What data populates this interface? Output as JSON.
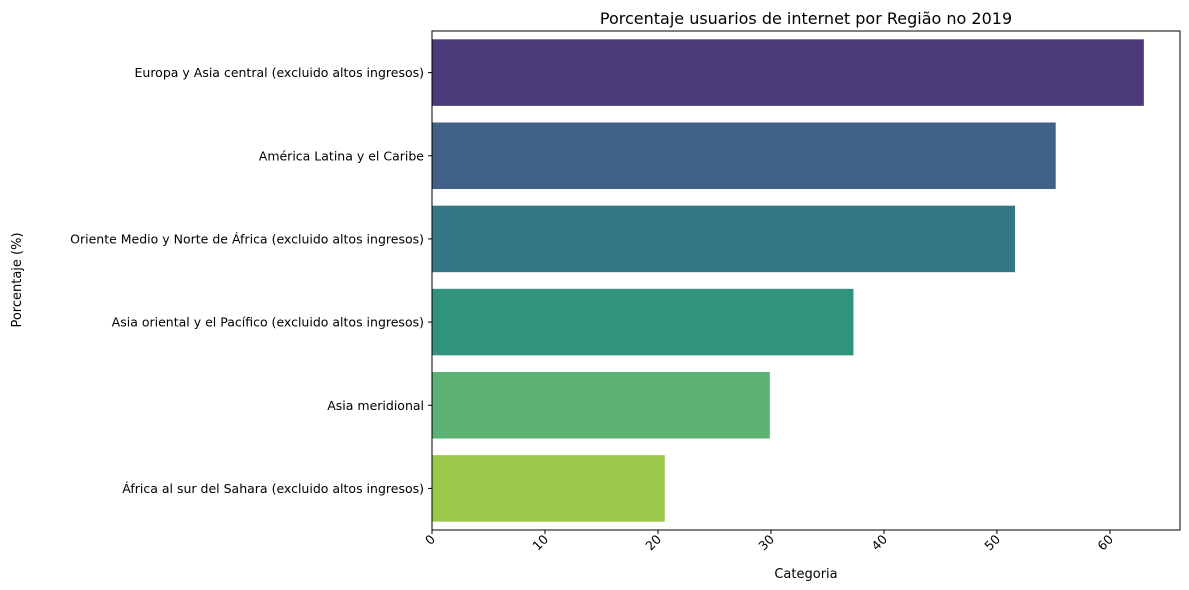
{
  "chart_data": {
    "type": "bar",
    "orientation": "horizontal",
    "title": "Porcentaje usuarios de internet por Região no 2019",
    "xlabel": "Categoria",
    "ylabel": "Porcentaje (%)",
    "xlim": [
      0,
      66.2
    ],
    "xticks": [
      "0",
      "10",
      "20",
      "30",
      "40",
      "50",
      "60"
    ],
    "categories": [
      "Europa y Asia central (excluido altos ingresos)",
      "América Latina y el Caribe",
      "Oriente Medio y Norte de África (excluido altos ingresos)",
      "Asia oriental y el Pacífico (excluido altos ingresos)",
      "Asia meridional",
      "África al sur del Sahara (excluido altos ingresos)"
    ],
    "values": [
      63.0,
      55.2,
      51.6,
      37.3,
      29.9,
      20.6
    ],
    "colors": [
      "#4a3a78",
      "#416186",
      "#347784",
      "#31927e",
      "#5cb272",
      "#9cc84c"
    ],
    "grid": false,
    "legend": "none"
  }
}
